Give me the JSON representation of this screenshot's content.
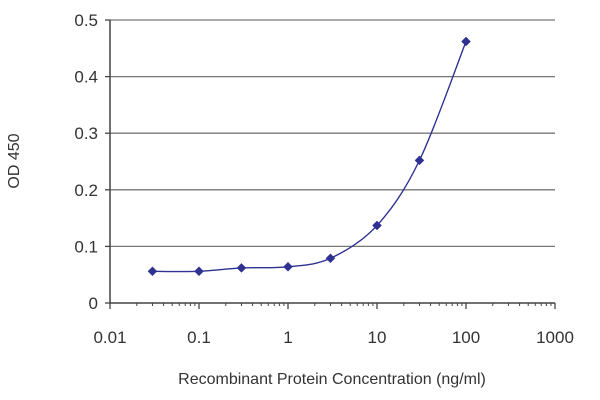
{
  "chart_data": {
    "type": "line",
    "xscale": "log",
    "title": "",
    "xlabel": "Recombinant Protein Concentration (ng/ml)",
    "ylabel": "OD 450",
    "xlim": [
      0.01,
      1000
    ],
    "ylim": [
      0,
      0.5
    ],
    "xticks": [
      0.01,
      0.1,
      1,
      10,
      100,
      1000
    ],
    "xtick_labels": [
      "0.01",
      "0.1",
      "1",
      "10",
      "100",
      "1000"
    ],
    "yticks": [
      0,
      0.1,
      0.2,
      0.3,
      0.4,
      0.5
    ],
    "ytick_labels": [
      "0",
      "0.1",
      "0.2",
      "0.3",
      "0.4",
      "0.5"
    ],
    "grid": "horizontal",
    "series": [
      {
        "color": "#2e3192",
        "marker": "diamond",
        "x": [
          0.03,
          0.1,
          0.3,
          1,
          3,
          10,
          30,
          100
        ],
        "y": [
          0.056,
          0.056,
          0.062,
          0.064,
          0.079,
          0.137,
          0.252,
          0.462
        ]
      }
    ]
  }
}
